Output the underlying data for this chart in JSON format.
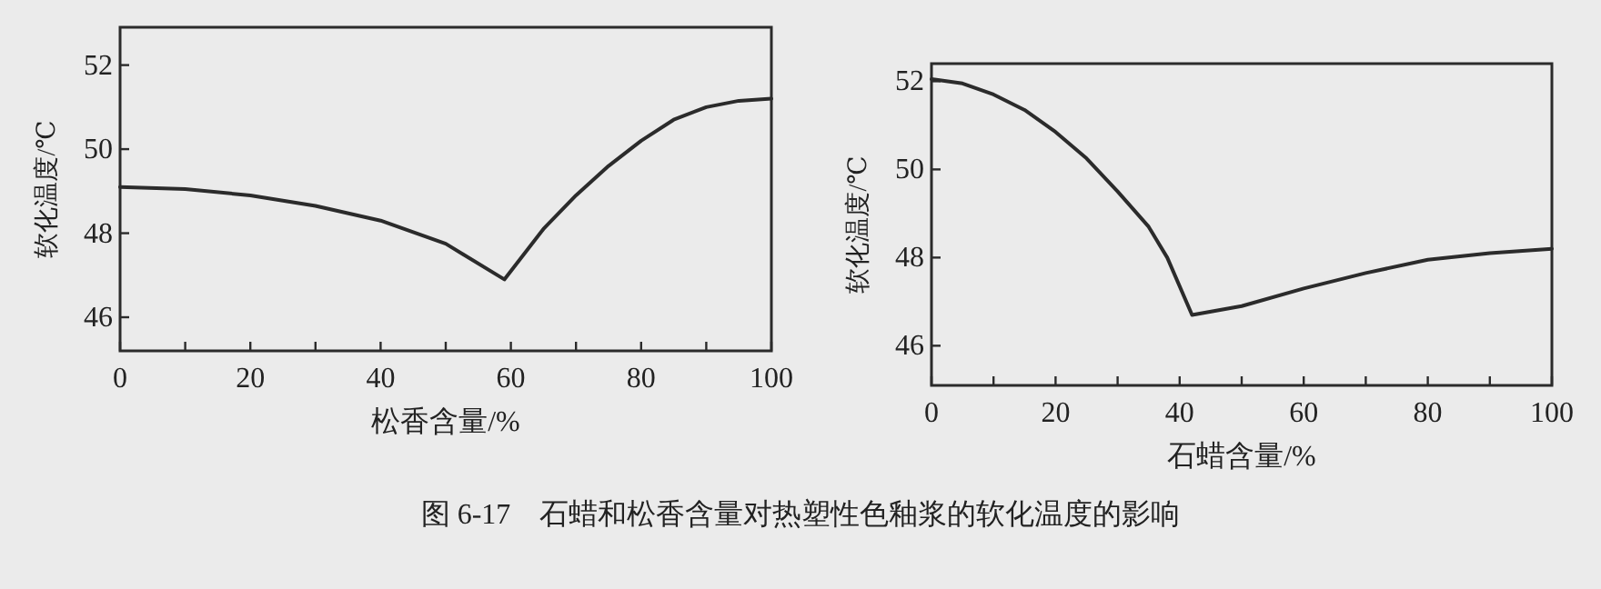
{
  "chart_data": [
    {
      "type": "line",
      "xlabel": "松香含量/%",
      "ylabel": "软化温度/℃",
      "xlim": [
        0,
        100
      ],
      "ylim": [
        45.2,
        52.9
      ],
      "xticks": [
        0,
        {
          "value": 10,
          "label": null
        },
        20,
        {
          "value": 30,
          "label": null
        },
        40,
        {
          "value": 50,
          "label": null
        },
        60,
        {
          "value": 70,
          "label": null
        },
        80,
        {
          "value": 90,
          "label": null
        },
        100
      ],
      "yticks": [
        46,
        48,
        50,
        52
      ],
      "series": [
        {
          "color": "#2b2b2b",
          "x": [
            0,
            10,
            20,
            30,
            40,
            50,
            59,
            60,
            65,
            70,
            75,
            80,
            85,
            90,
            95,
            100
          ],
          "values": [
            49.1,
            49.05,
            48.9,
            48.65,
            48.3,
            47.75,
            46.9,
            47.1,
            48.1,
            48.9,
            49.6,
            50.2,
            50.7,
            51.0,
            51.15,
            51.2
          ]
        }
      ],
      "annotations": [
        "图 6-17　石蜡和松香含量对热塑性色釉浆的软化温度的影响"
      ]
    },
    {
      "type": "line",
      "xlabel": "石蜡含量/%",
      "ylabel": "软化温度/℃",
      "xlim": [
        0,
        100
      ],
      "ylim": [
        45.1,
        52.4
      ],
      "xticks": [
        0,
        {
          "value": 10,
          "label": null
        },
        20,
        {
          "value": 30,
          "label": null
        },
        40,
        {
          "value": 50,
          "label": null
        },
        60,
        {
          "value": 70,
          "label": null
        },
        80,
        {
          "value": 90,
          "label": null
        },
        100
      ],
      "yticks": [
        46,
        48,
        50,
        52
      ],
      "series": [
        {
          "color": "#2b2b2b",
          "x": [
            0,
            5,
            10,
            15,
            20,
            25,
            30,
            35,
            38,
            42,
            50,
            60,
            70,
            80,
            90,
            100
          ],
          "values": [
            52.05,
            51.95,
            51.7,
            51.35,
            50.85,
            50.25,
            49.5,
            48.7,
            48.0,
            46.7,
            46.9,
            47.3,
            47.65,
            47.95,
            48.1,
            48.2
          ]
        }
      ]
    }
  ]
}
